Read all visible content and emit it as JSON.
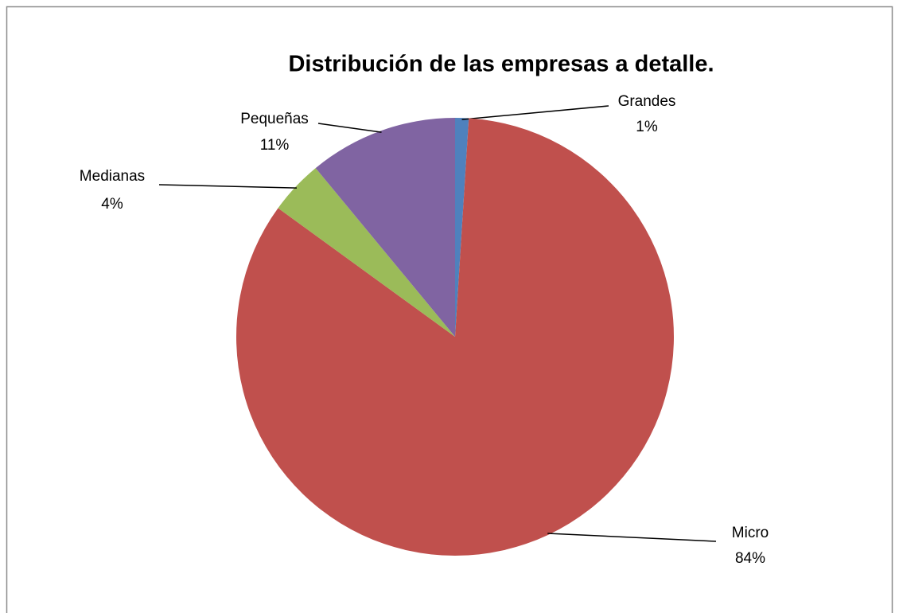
{
  "chart_data": {
    "type": "pie",
    "title": "Distribución de las empresas a detalle.",
    "categories": [
      "Grandes",
      "Micro",
      "Medianas",
      "Pequeñas"
    ],
    "values": [
      1,
      84,
      4,
      11
    ],
    "value_labels": [
      "1%",
      "84%",
      "4%",
      "11%"
    ],
    "colors": [
      "#4f81bd",
      "#c0504d",
      "#9bbb59",
      "#8064a2"
    ]
  }
}
